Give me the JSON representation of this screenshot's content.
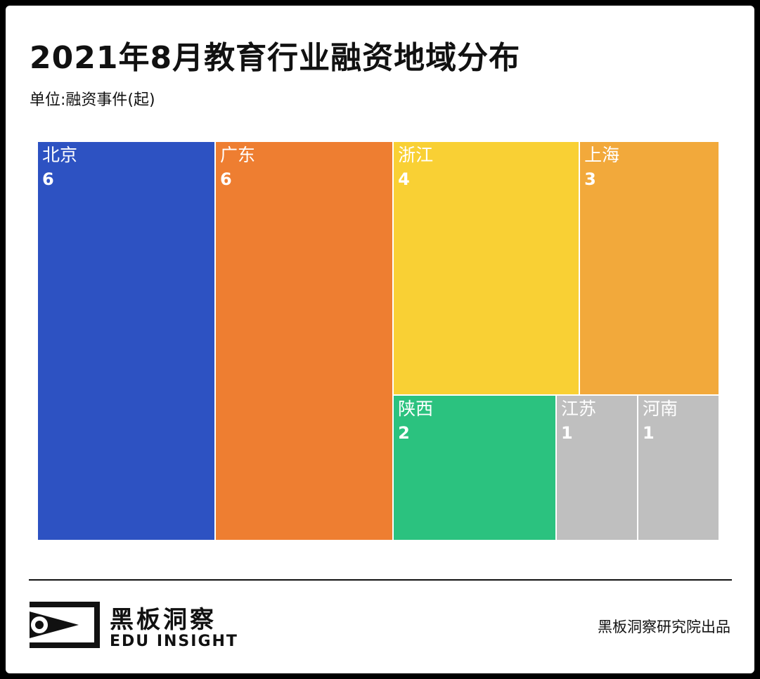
{
  "chart_data": {
    "type": "treemap",
    "title": "2021年8月教育行业融资地域分布",
    "subtitle": "单位:融资事件(起)",
    "items": [
      {
        "name": "北京",
        "value": 6,
        "color": "#2D52C2"
      },
      {
        "name": "广东",
        "value": 6,
        "color": "#EE7E31"
      },
      {
        "name": "浙江",
        "value": 4,
        "color": "#F9D034"
      },
      {
        "name": "上海",
        "value": 3,
        "color": "#F2A93B"
      },
      {
        "name": "陕西",
        "value": 2,
        "color": "#2BC27F"
      },
      {
        "name": "江苏",
        "value": 1,
        "color": "#BFBFBF"
      },
      {
        "name": "河南",
        "value": 1,
        "color": "#BFBFBF"
      }
    ]
  },
  "brand": {
    "name_cn": "黑板洞察",
    "name_en": "EDU INSIGHT",
    "credit": "黑板洞察研究院出品"
  }
}
